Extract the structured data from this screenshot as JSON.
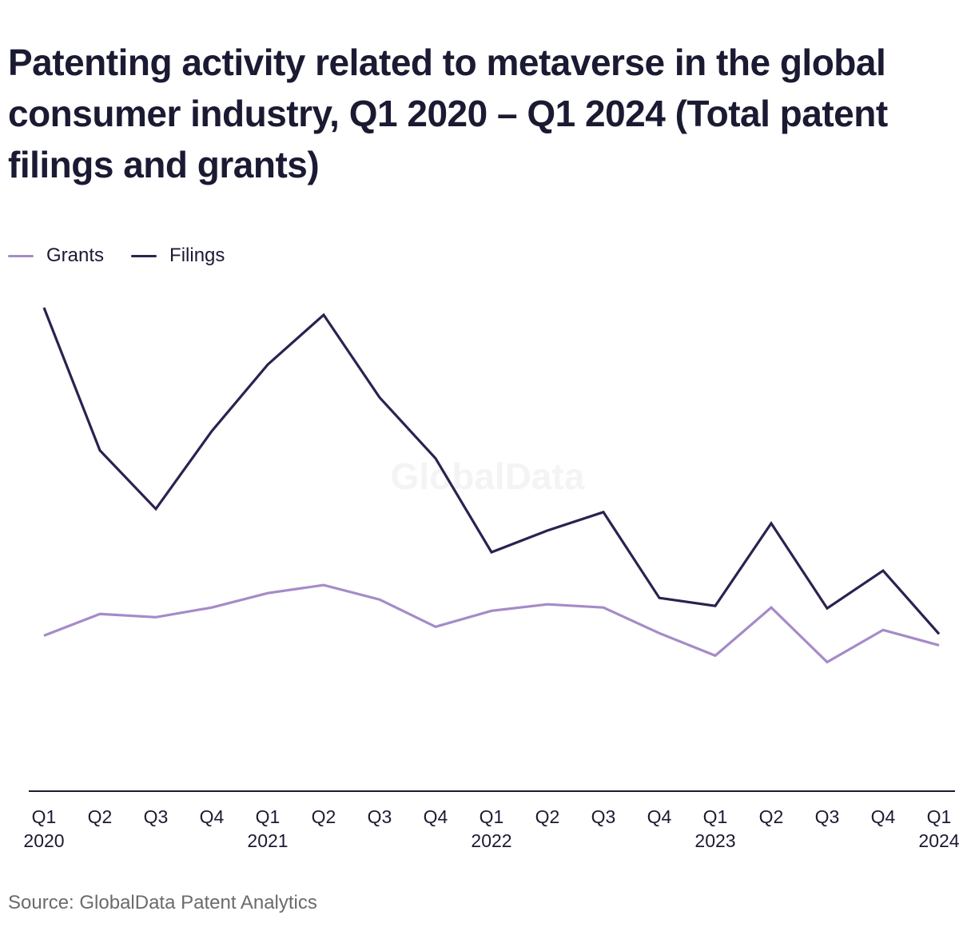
{
  "title": "Patenting activity related to metaverse in the global consumer industry, Q1 2020 – Q1 2024 (Total patent filings and grants)",
  "source": "Source: GlobalData Patent Analytics",
  "watermark": "GlobalData",
  "colors": {
    "grants": "#a58bc8",
    "filings": "#2d2150",
    "axis": "#1b1a33",
    "watermark": "#f4f4f4"
  },
  "chart_data": {
    "type": "line",
    "categories": [
      [
        "Q1",
        "2020"
      ],
      [
        "Q2",
        ""
      ],
      [
        "Q3",
        ""
      ],
      [
        "Q4",
        ""
      ],
      [
        "Q1",
        "2021"
      ],
      [
        "Q2",
        ""
      ],
      [
        "Q3",
        ""
      ],
      [
        "Q4",
        ""
      ],
      [
        "Q1",
        "2022"
      ],
      [
        "Q2",
        ""
      ],
      [
        "Q3",
        ""
      ],
      [
        "Q4",
        ""
      ],
      [
        "Q1",
        "2023"
      ],
      [
        "Q2",
        ""
      ],
      [
        "Q3",
        ""
      ],
      [
        "Q4",
        ""
      ],
      [
        "Q1",
        "2024"
      ]
    ],
    "series": [
      {
        "name": "Grants",
        "color": "#a58bc8",
        "values": [
          194,
          221,
          217,
          229,
          247,
          257,
          239,
          205,
          225,
          233,
          229,
          197,
          169,
          229,
          161,
          201,
          182
        ]
      },
      {
        "name": "Filings",
        "color": "#2d2150",
        "values": [
          603,
          425,
          352,
          449,
          532,
          594,
          491,
          415,
          298,
          325,
          348,
          241,
          231,
          334,
          228,
          275,
          196
        ]
      }
    ],
    "ylim": [
      0,
      600
    ],
    "y_axis_visible": false,
    "grid": false,
    "legend": "top-left",
    "xlabel": "",
    "ylabel": ""
  }
}
